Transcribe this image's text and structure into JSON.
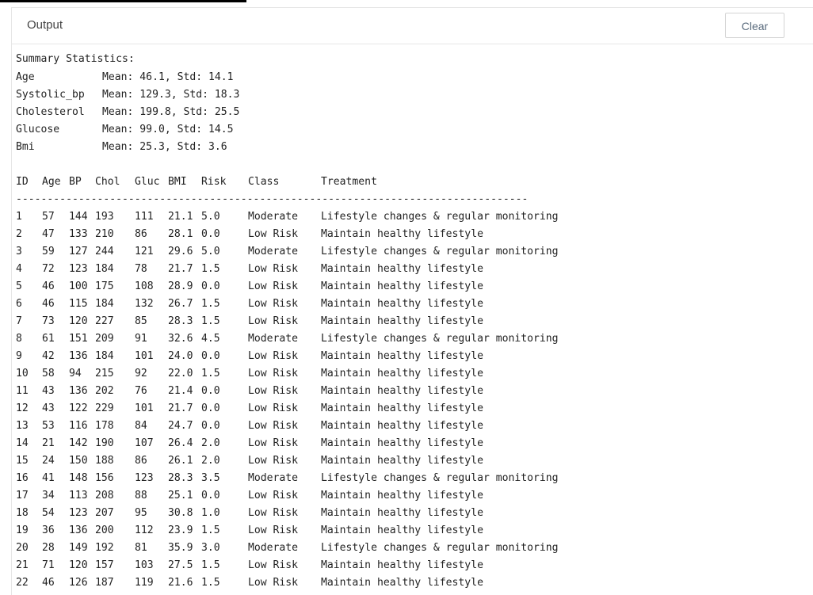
{
  "panel": {
    "title": "Output",
    "clear_label": "Clear"
  },
  "summary": {
    "heading": "Summary Statistics:",
    "rows": [
      {
        "label": "Age",
        "value": "Mean: 46.1, Std: 14.1"
      },
      {
        "label": "Systolic_bp",
        "value": "Mean: 129.3, Std: 18.3"
      },
      {
        "label": "Cholesterol",
        "value": "Mean: 199.8, Std: 25.5"
      },
      {
        "label": "Glucose",
        "value": "Mean: 99.0, Std: 14.5"
      },
      {
        "label": "Bmi",
        "value": "Mean: 25.3, Std: 3.6"
      }
    ]
  },
  "table": {
    "headers": [
      "ID",
      "Age",
      "BP",
      "Chol",
      "Gluc",
      "BMI",
      "Risk",
      "Class",
      "Treatment"
    ],
    "separator": "----------------------------------------------------------------------------------",
    "rows": [
      [
        "1",
        "57",
        "144",
        "193",
        "111",
        "21.1",
        "5.0",
        "Moderate",
        "Lifestyle changes & regular monitoring"
      ],
      [
        "2",
        "47",
        "133",
        "210",
        "86",
        "28.1",
        "0.0",
        "Low Risk",
        "Maintain healthy lifestyle"
      ],
      [
        "3",
        "59",
        "127",
        "244",
        "121",
        "29.6",
        "5.0",
        "Moderate",
        "Lifestyle changes & regular monitoring"
      ],
      [
        "4",
        "72",
        "123",
        "184",
        "78",
        "21.7",
        "1.5",
        "Low Risk",
        "Maintain healthy lifestyle"
      ],
      [
        "5",
        "46",
        "100",
        "175",
        "108",
        "28.9",
        "0.0",
        "Low Risk",
        "Maintain healthy lifestyle"
      ],
      [
        "6",
        "46",
        "115",
        "184",
        "132",
        "26.7",
        "1.5",
        "Low Risk",
        "Maintain healthy lifestyle"
      ],
      [
        "7",
        "73",
        "120",
        "227",
        "85",
        "28.3",
        "1.5",
        "Low Risk",
        "Maintain healthy lifestyle"
      ],
      [
        "8",
        "61",
        "151",
        "209",
        "91",
        "32.6",
        "4.5",
        "Moderate",
        "Lifestyle changes & regular monitoring"
      ],
      [
        "9",
        "42",
        "136",
        "184",
        "101",
        "24.0",
        "0.0",
        "Low Risk",
        "Maintain healthy lifestyle"
      ],
      [
        "10",
        "58",
        "94",
        "215",
        "92",
        "22.0",
        "1.5",
        "Low Risk",
        "Maintain healthy lifestyle"
      ],
      [
        "11",
        "43",
        "136",
        "202",
        "76",
        "21.4",
        "0.0",
        "Low Risk",
        "Maintain healthy lifestyle"
      ],
      [
        "12",
        "43",
        "122",
        "229",
        "101",
        "21.7",
        "0.0",
        "Low Risk",
        "Maintain healthy lifestyle"
      ],
      [
        "13",
        "53",
        "116",
        "178",
        "84",
        "24.7",
        "0.0",
        "Low Risk",
        "Maintain healthy lifestyle"
      ],
      [
        "14",
        "21",
        "142",
        "190",
        "107",
        "26.4",
        "2.0",
        "Low Risk",
        "Maintain healthy lifestyle"
      ],
      [
        "15",
        "24",
        "150",
        "188",
        "86",
        "26.1",
        "2.0",
        "Low Risk",
        "Maintain healthy lifestyle"
      ],
      [
        "16",
        "41",
        "148",
        "156",
        "123",
        "28.3",
        "3.5",
        "Moderate",
        "Lifestyle changes & regular monitoring"
      ],
      [
        "17",
        "34",
        "113",
        "208",
        "88",
        "25.1",
        "0.0",
        "Low Risk",
        "Maintain healthy lifestyle"
      ],
      [
        "18",
        "54",
        "123",
        "207",
        "95",
        "30.8",
        "1.0",
        "Low Risk",
        "Maintain healthy lifestyle"
      ],
      [
        "19",
        "36",
        "136",
        "200",
        "112",
        "23.9",
        "1.5",
        "Low Risk",
        "Maintain healthy lifestyle"
      ],
      [
        "20",
        "28",
        "149",
        "192",
        "81",
        "35.9",
        "3.0",
        "Moderate",
        "Lifestyle changes & regular monitoring"
      ],
      [
        "21",
        "71",
        "120",
        "157",
        "103",
        "27.5",
        "1.5",
        "Low Risk",
        "Maintain healthy lifestyle"
      ],
      [
        "22",
        "46",
        "126",
        "187",
        "119",
        "21.6",
        "1.5",
        "Low Risk",
        "Maintain healthy lifestyle"
      ]
    ]
  }
}
